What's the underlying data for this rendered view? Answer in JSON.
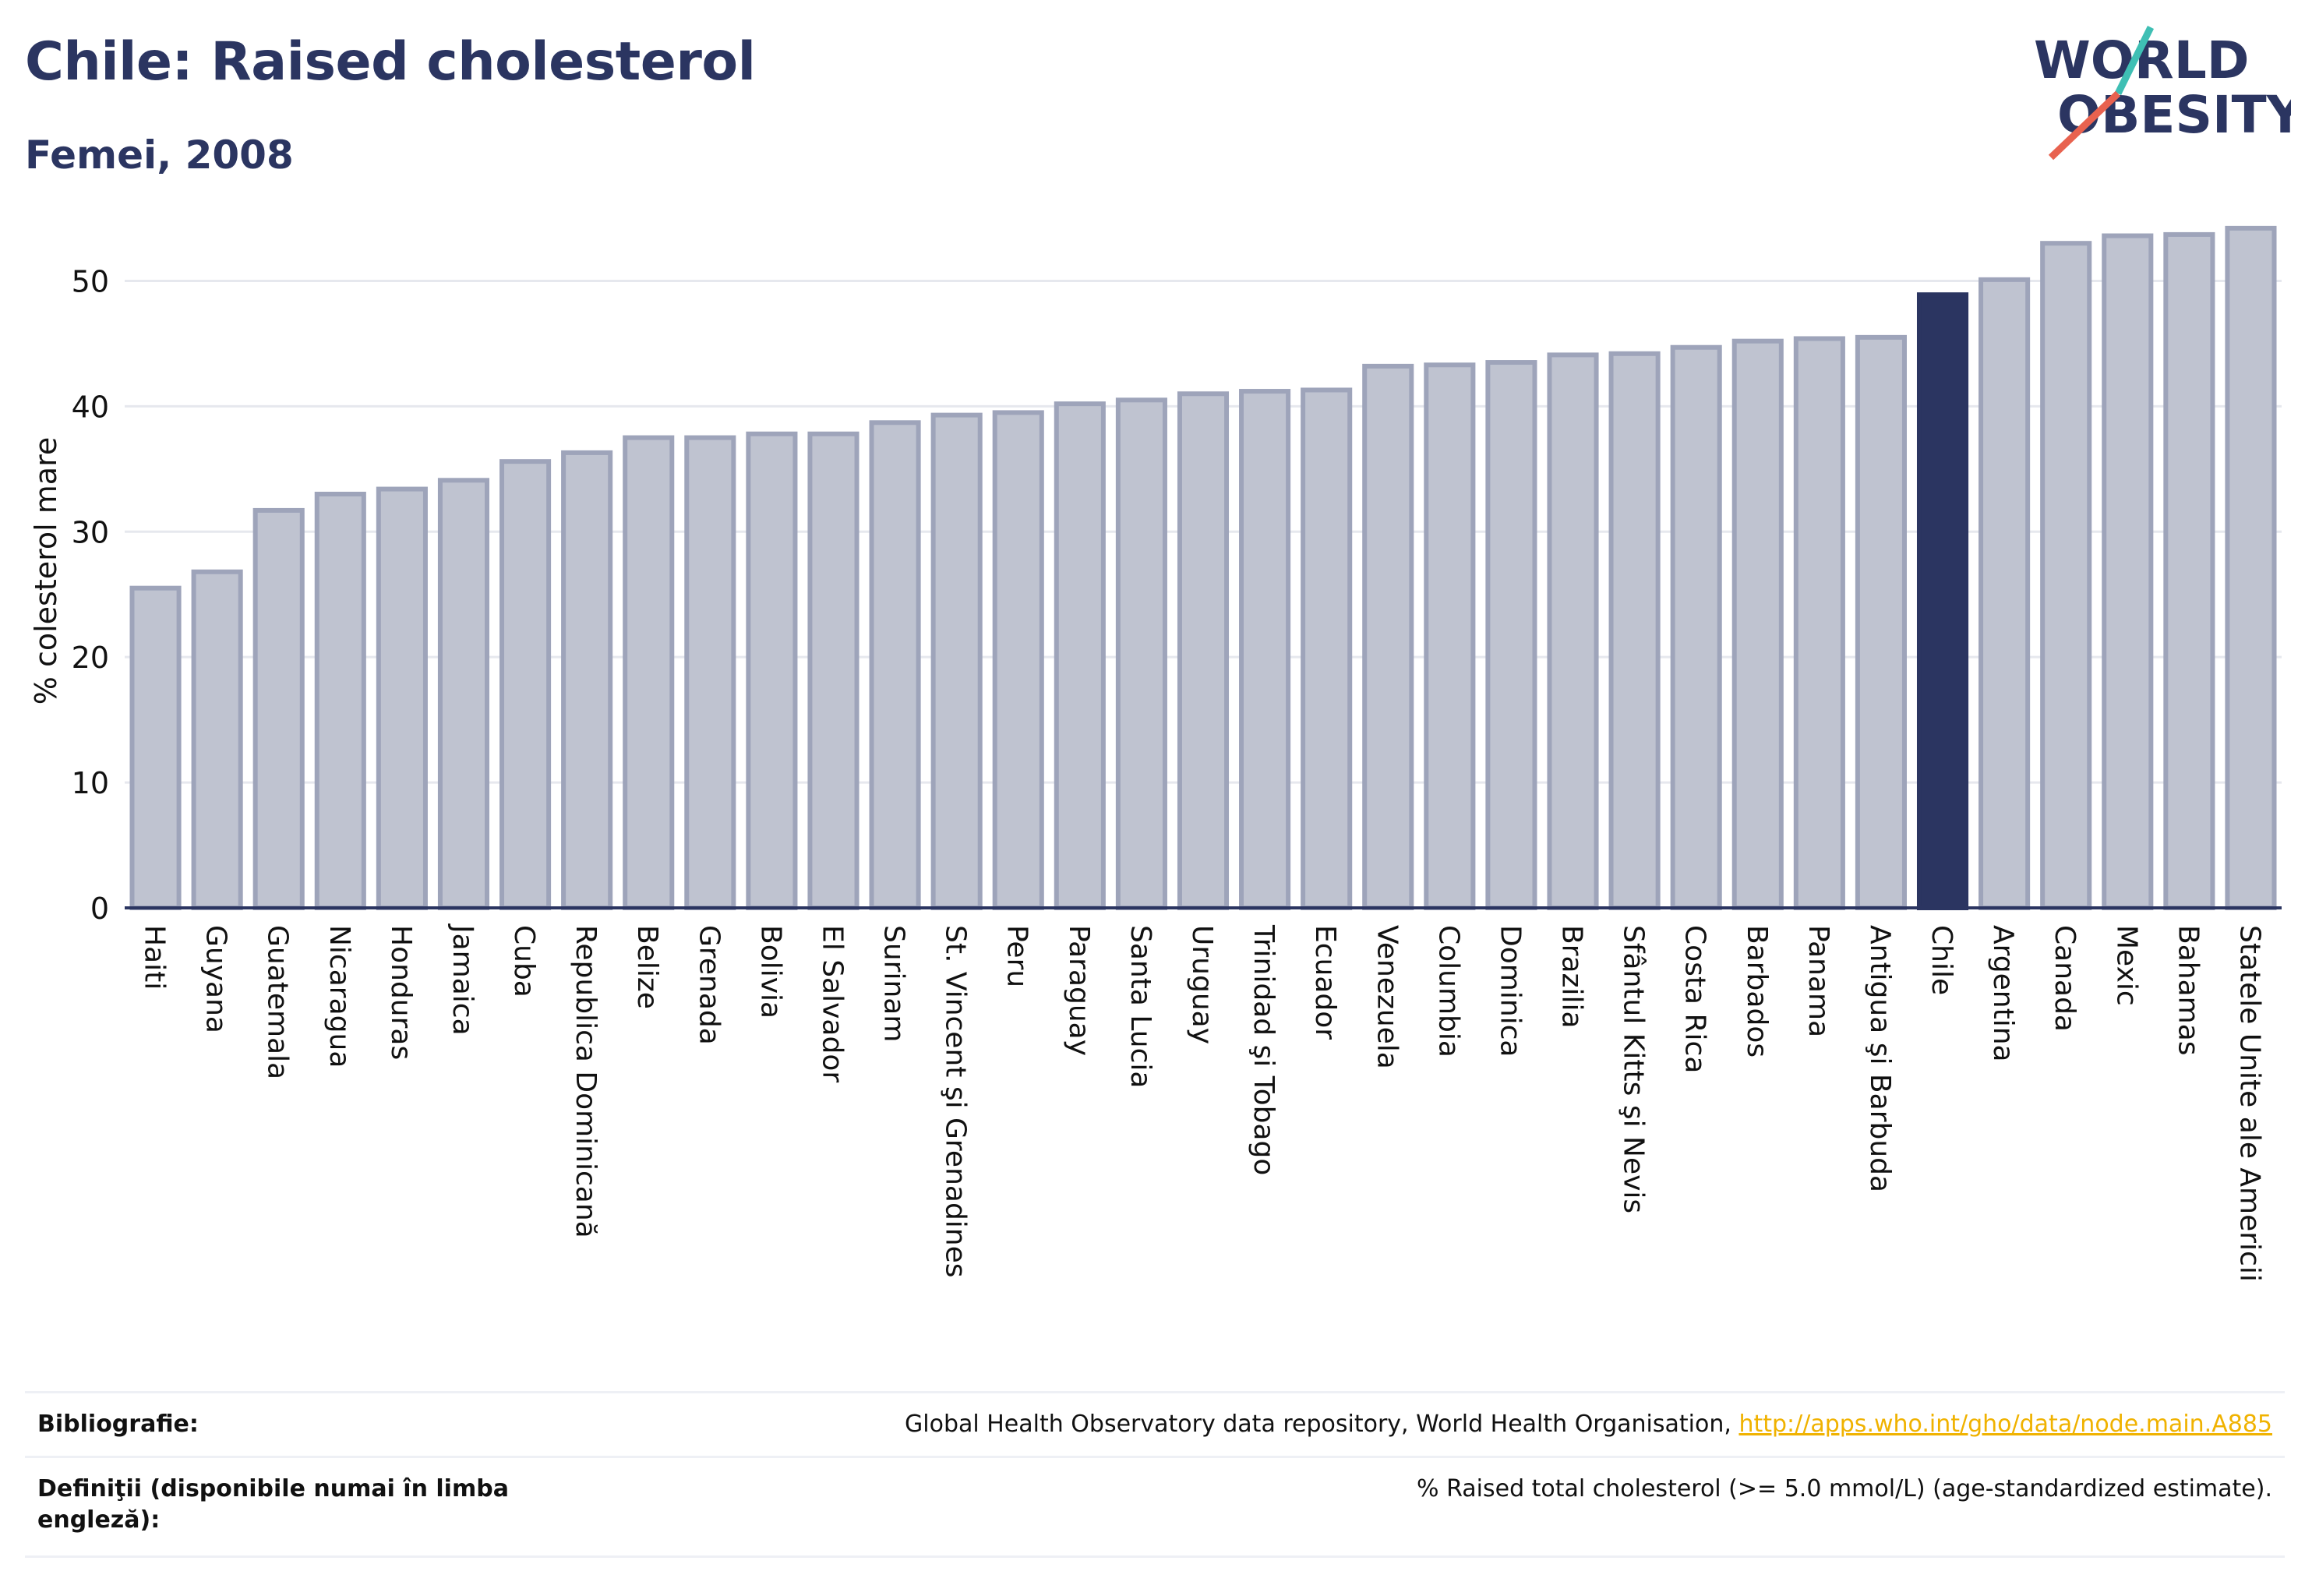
{
  "header": {
    "title": "Chile: Raised cholesterol",
    "subtitle": "Femei, 2008"
  },
  "logo": {
    "line1": "WORLD",
    "line2": "OBESITY",
    "accent_teal": "#3fbfb4",
    "accent_red": "#e8624f"
  },
  "colors": {
    "bar_fill": "#bfc3d0",
    "bar_stroke": "#9ea4ba",
    "highlight": "#2b3561",
    "grid": "#e6e8ee",
    "axis": "#2b3561"
  },
  "chart_data": {
    "type": "bar",
    "title": "Chile: Raised cholesterol",
    "subtitle": "Femei, 2008",
    "ylabel": "% colesterol mare",
    "xlabel": "",
    "ylim": [
      0,
      55
    ],
    "yticks": [
      0,
      10,
      20,
      30,
      40,
      50
    ],
    "grid": true,
    "highlight": "Chile",
    "categories": [
      "Haiti",
      "Guyana",
      "Guatemala",
      "Nicaragua",
      "Honduras",
      "Jamaica",
      "Cuba",
      "Republica Dominicană",
      "Belize",
      "Grenada",
      "Bolivia",
      "El Salvador",
      "Surinam",
      "St. Vincent şi Grenadines",
      "Peru",
      "Paraguay",
      "Santa Lucia",
      "Uruguay",
      "Trinidad şi Tobago",
      "Ecuador",
      "Venezuela",
      "Columbia",
      "Dominica",
      "Brazilia",
      "Sfântul Kitts şi Nevis",
      "Costa Rica",
      "Barbados",
      "Panama",
      "Antigua şi Barbuda",
      "Chile",
      "Argentina",
      "Canada",
      "Mexic",
      "Bahamas",
      "Statele Unite ale Americii"
    ],
    "values": [
      25.5,
      26.8,
      31.7,
      33.0,
      33.4,
      34.1,
      35.6,
      36.3,
      37.5,
      37.5,
      37.8,
      37.8,
      38.7,
      39.3,
      39.5,
      40.2,
      40.5,
      41.0,
      41.2,
      41.3,
      43.2,
      43.3,
      43.5,
      44.1,
      44.2,
      44.7,
      45.2,
      45.4,
      45.5,
      48.9,
      50.1,
      53.0,
      53.6,
      53.7,
      54.2
    ]
  },
  "footer": {
    "bibliography_label": "Bibliografie:",
    "bibliography_text": "Global Health Observatory data repository, World Health Organisation, ",
    "bibliography_link": "http://apps.who.int/gho/data/node.main.A885",
    "definitions_label_line1": "Definiţii (disponibile numai în limba",
    "definitions_label_line2": "engleză):",
    "definitions_text": "% Raised total cholesterol (>= 5.0 mmol/L) (age-standardized estimate)."
  }
}
